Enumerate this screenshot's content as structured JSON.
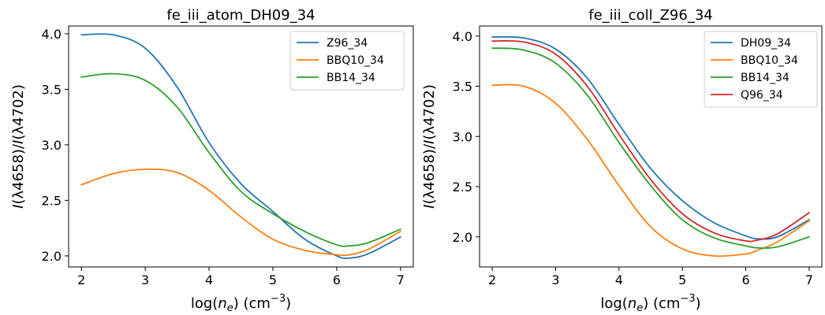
{
  "chart_data": [
    {
      "type": "line",
      "title": "fe_iii_atom_DH09_34",
      "xlabel_base": "log(",
      "xlabel_var": "n",
      "xlabel_sub": "e",
      "xlabel_unit": ") (cm",
      "xlabel_exp": "−3",
      "xlabel_close": ")",
      "ylabel_pre": "I",
      "ylabel_mid": "(λ4658)/",
      "ylabel_i2": "I",
      "ylabel_post": "(λ4702)",
      "xlim": [
        1.8,
        7.2
      ],
      "ylim": [
        1.9,
        4.07
      ],
      "xticks": [
        2,
        3,
        4,
        5,
        6,
        7
      ],
      "yticks": [
        2.0,
        2.5,
        3.0,
        3.5,
        4.0
      ],
      "ytick_labels": [
        "2.0",
        "2.5",
        "3.0",
        "3.5",
        "4.0"
      ],
      "legend_position": "top-right",
      "x": [
        2.0,
        2.5,
        3.0,
        3.5,
        4.0,
        4.5,
        5.0,
        5.5,
        6.0,
        6.2,
        6.5,
        7.0
      ],
      "series": [
        {
          "name": "Z96_34",
          "color": "#1f77b4",
          "values": [
            3.99,
            3.99,
            3.87,
            3.52,
            3.02,
            2.65,
            2.4,
            2.15,
            2.0,
            1.98,
            2.02,
            2.17
          ]
        },
        {
          "name": "BBQ10_34",
          "color": "#ff7f0e",
          "values": [
            2.64,
            2.74,
            2.78,
            2.75,
            2.59,
            2.35,
            2.15,
            2.05,
            2.01,
            2.01,
            2.06,
            2.22
          ]
        },
        {
          "name": "BB14_34",
          "color": "#2ca02c",
          "values": [
            3.61,
            3.64,
            3.58,
            3.34,
            2.93,
            2.58,
            2.38,
            2.22,
            2.1,
            2.09,
            2.12,
            2.24
          ]
        }
      ]
    },
    {
      "type": "line",
      "title": "fe_iii_coll_Z96_34",
      "xlabel_base": "log(",
      "xlabel_var": "n",
      "xlabel_sub": "e",
      "xlabel_unit": ") (cm",
      "xlabel_exp": "−3",
      "xlabel_close": ")",
      "ylabel_pre": "I",
      "ylabel_mid": "(λ4658)/",
      "ylabel_i2": "I",
      "ylabel_post": "(λ4702)",
      "xlim": [
        1.8,
        7.2
      ],
      "ylim": [
        1.7,
        4.1
      ],
      "xticks": [
        2,
        3,
        4,
        5,
        6,
        7
      ],
      "yticks": [
        2.0,
        2.5,
        3.0,
        3.5,
        4.0
      ],
      "ytick_labels": [
        "2.0",
        "2.5",
        "3.0",
        "3.5",
        "4.0"
      ],
      "legend_position": "top-right",
      "x": [
        2.0,
        2.5,
        3.0,
        3.5,
        4.0,
        4.5,
        5.0,
        5.5,
        6.0,
        6.2,
        6.5,
        7.0
      ],
      "series": [
        {
          "name": "DH09_34",
          "color": "#1f77b4",
          "values": [
            3.99,
            3.98,
            3.87,
            3.58,
            3.12,
            2.68,
            2.36,
            2.14,
            2.01,
            1.98,
            2.0,
            2.17
          ]
        },
        {
          "name": "BBQ10_34",
          "color": "#ff7f0e",
          "values": [
            3.51,
            3.5,
            3.33,
            2.97,
            2.51,
            2.1,
            1.88,
            1.81,
            1.83,
            1.87,
            1.95,
            2.16
          ]
        },
        {
          "name": "BB14_34",
          "color": "#2ca02c",
          "values": [
            3.88,
            3.86,
            3.73,
            3.41,
            2.94,
            2.51,
            2.17,
            1.99,
            1.91,
            1.89,
            1.9,
            2.0
          ]
        },
        {
          "name": "Q96_34",
          "color": "#d62728",
          "values": [
            3.95,
            3.94,
            3.82,
            3.5,
            3.02,
            2.57,
            2.23,
            2.04,
            1.96,
            1.97,
            2.03,
            2.24
          ]
        }
      ]
    }
  ]
}
